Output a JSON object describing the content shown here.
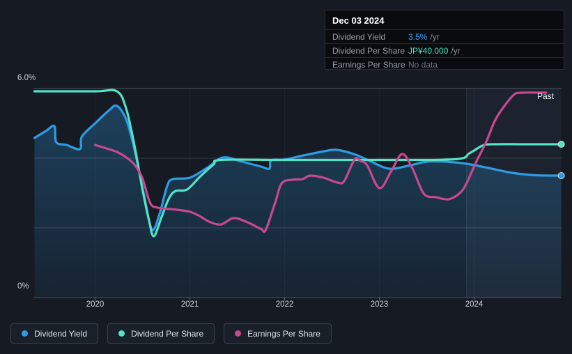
{
  "tooltip": {
    "date": "Dec 03 2024",
    "rows": [
      {
        "label": "Dividend Yield",
        "value": "3.5%",
        "suffix": "/yr",
        "value_color": "#3aa1f0"
      },
      {
        "label": "Dividend Per Share",
        "value": "JP¥40.000",
        "suffix": "/yr",
        "value_color": "#4ae0bf"
      },
      {
        "label": "Earnings Per Share",
        "value": "No data",
        "suffix": "",
        "value_color": "#6d737d"
      }
    ]
  },
  "axis": {
    "y_top_label": "6.0%",
    "y_bottom_label": "0%",
    "x_labels": [
      "2020",
      "2021",
      "2022",
      "2023",
      "2024"
    ]
  },
  "past_label": "Past",
  "legend": [
    {
      "label": "Dividend Yield",
      "color": "#2e9ce4"
    },
    {
      "label": "Dividend Per Share",
      "color": "#52e4c5"
    },
    {
      "label": "Earnings Per Share",
      "color": "#c9488e"
    }
  ],
  "colors": {
    "background": "#151a23",
    "dividend_yield": "#2e9ce4",
    "dividend_per_share": "#52e4c5",
    "earnings_per_share": "#c9488e",
    "area_fill_base": "rgb(66,148,210)",
    "grid": "#3d4754"
  },
  "chart_data": {
    "type": "line",
    "title": "",
    "xlabel": "",
    "ylabel": "Dividend Yield (%)",
    "ylim": [
      0,
      6
    ],
    "xlim": [
      2019.35,
      2024.92
    ],
    "x_ticks": [
      2020,
      2021,
      2022,
      2023,
      2024
    ],
    "y_gridlines_pct": [
      0,
      2,
      4,
      6
    ],
    "highlight_band_start": 2023.92,
    "legend_position": "bottom-left",
    "note": "x = decimal year; y = position in left-axis percent units. Dividend Per Share (JP¥40.000/yr at Dec 03 2024) and Earnings Per Share (No data at Dec 03 2024) are drawn on independent hidden scales.",
    "series": [
      {
        "name": "Dividend Yield",
        "color": "#2e9ce4",
        "area_fill": true,
        "end_dot": true,
        "points": [
          [
            2019.36,
            4.58
          ],
          [
            2019.48,
            4.78
          ],
          [
            2019.57,
            4.92
          ],
          [
            2019.59,
            4.46
          ],
          [
            2019.7,
            4.38
          ],
          [
            2019.84,
            4.26
          ],
          [
            2019.86,
            4.62
          ],
          [
            2020.0,
            5.0
          ],
          [
            2020.15,
            5.38
          ],
          [
            2020.23,
            5.5
          ],
          [
            2020.33,
            5.1
          ],
          [
            2020.42,
            4.2
          ],
          [
            2020.52,
            2.9
          ],
          [
            2020.6,
            1.95
          ],
          [
            2020.68,
            2.4
          ],
          [
            2020.76,
            3.2
          ],
          [
            2020.82,
            3.4
          ],
          [
            2021.0,
            3.44
          ],
          [
            2021.18,
            3.72
          ],
          [
            2021.35,
            4.02
          ],
          [
            2021.55,
            3.9
          ],
          [
            2021.75,
            3.76
          ],
          [
            2021.84,
            3.7
          ],
          [
            2021.86,
            3.94
          ],
          [
            2022.0,
            3.96
          ],
          [
            2022.2,
            4.08
          ],
          [
            2022.42,
            4.2
          ],
          [
            2022.55,
            4.24
          ],
          [
            2022.75,
            4.1
          ],
          [
            2022.9,
            3.92
          ],
          [
            2023.1,
            3.7
          ],
          [
            2023.3,
            3.78
          ],
          [
            2023.5,
            3.9
          ],
          [
            2023.7,
            3.9
          ],
          [
            2023.92,
            3.84
          ],
          [
            2024.15,
            3.72
          ],
          [
            2024.4,
            3.58
          ],
          [
            2024.65,
            3.51
          ],
          [
            2024.92,
            3.5
          ]
        ]
      },
      {
        "name": "Dividend Per Share",
        "color": "#52e4c5",
        "area_fill": false,
        "end_dot": true,
        "points": [
          [
            2019.36,
            5.92
          ],
          [
            2020.0,
            5.92
          ],
          [
            2020.23,
            5.92
          ],
          [
            2020.33,
            5.4
          ],
          [
            2020.42,
            4.3
          ],
          [
            2020.5,
            3.1
          ],
          [
            2020.57,
            2.2
          ],
          [
            2020.62,
            1.76
          ],
          [
            2020.7,
            2.3
          ],
          [
            2020.78,
            2.85
          ],
          [
            2020.85,
            3.06
          ],
          [
            2020.97,
            3.1
          ],
          [
            2021.1,
            3.45
          ],
          [
            2021.25,
            3.82
          ],
          [
            2021.33,
            3.95
          ],
          [
            2022.0,
            3.95
          ],
          [
            2023.0,
            3.95
          ],
          [
            2023.8,
            3.97
          ],
          [
            2023.95,
            4.14
          ],
          [
            2024.08,
            4.35
          ],
          [
            2024.18,
            4.4
          ],
          [
            2024.55,
            4.4
          ],
          [
            2024.92,
            4.4
          ]
        ]
      },
      {
        "name": "Earnings Per Share",
        "color": "#c9488e",
        "area_fill": false,
        "end_dot": false,
        "points": [
          [
            2020.0,
            4.38
          ],
          [
            2020.12,
            4.28
          ],
          [
            2020.23,
            4.18
          ],
          [
            2020.33,
            4.02
          ],
          [
            2020.42,
            3.8
          ],
          [
            2020.5,
            3.42
          ],
          [
            2020.58,
            2.72
          ],
          [
            2020.66,
            2.58
          ],
          [
            2020.83,
            2.53
          ],
          [
            2020.99,
            2.47
          ],
          [
            2021.09,
            2.36
          ],
          [
            2021.21,
            2.17
          ],
          [
            2021.33,
            2.1
          ],
          [
            2021.46,
            2.28
          ],
          [
            2021.6,
            2.17
          ],
          [
            2021.75,
            1.97
          ],
          [
            2021.8,
            1.94
          ],
          [
            2021.9,
            2.72
          ],
          [
            2021.97,
            3.28
          ],
          [
            2022.08,
            3.38
          ],
          [
            2022.19,
            3.4
          ],
          [
            2022.27,
            3.5
          ],
          [
            2022.41,
            3.44
          ],
          [
            2022.56,
            3.3
          ],
          [
            2022.63,
            3.35
          ],
          [
            2022.74,
            3.97
          ],
          [
            2022.8,
            3.92
          ],
          [
            2022.87,
            3.8
          ],
          [
            2023.0,
            3.14
          ],
          [
            2023.12,
            3.6
          ],
          [
            2023.24,
            4.12
          ],
          [
            2023.35,
            3.7
          ],
          [
            2023.47,
            2.98
          ],
          [
            2023.6,
            2.88
          ],
          [
            2023.73,
            2.82
          ],
          [
            2023.85,
            3.0
          ],
          [
            2023.92,
            3.28
          ],
          [
            2024.02,
            3.88
          ],
          [
            2024.13,
            4.48
          ],
          [
            2024.22,
            5.08
          ],
          [
            2024.32,
            5.5
          ],
          [
            2024.42,
            5.82
          ],
          [
            2024.5,
            5.88
          ],
          [
            2024.76,
            5.88
          ]
        ]
      }
    ]
  }
}
